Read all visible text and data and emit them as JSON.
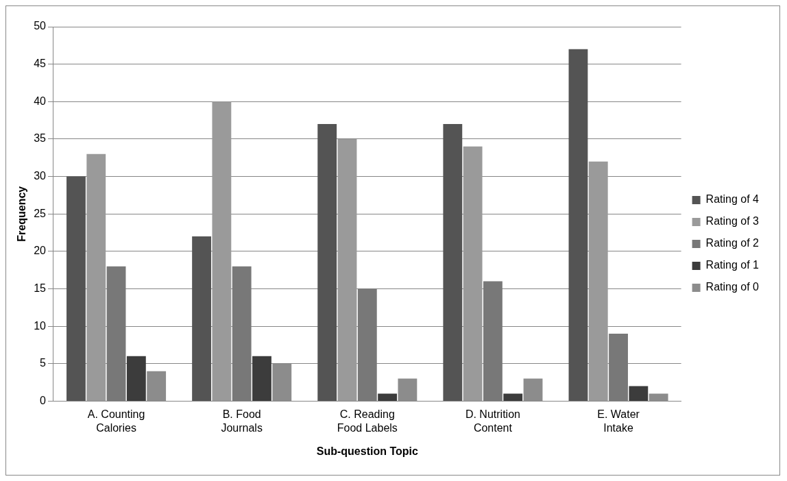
{
  "chart_data": {
    "type": "bar",
    "xlabel": "Sub-question Topic",
    "ylabel": "Frequency",
    "categories": [
      "A. Counting Calories",
      "B. Food Journals",
      "C. Reading Food Labels",
      "D. Nutrition Content",
      "E. Water Intake"
    ],
    "series": [
      {
        "name": "Rating of 4",
        "color": "#545454",
        "values": [
          30,
          22,
          37,
          37,
          47
        ]
      },
      {
        "name": "Rating of 3",
        "color": "#9a9a9a",
        "values": [
          33,
          40,
          35,
          34,
          32
        ]
      },
      {
        "name": "Rating of 2",
        "color": "#787878",
        "values": [
          18,
          18,
          15,
          16,
          9
        ]
      },
      {
        "name": "Rating of 1",
        "color": "#3c3c3c",
        "values": [
          6,
          6,
          1,
          1,
          2
        ]
      },
      {
        "name": "Rating of 0",
        "color": "#8c8c8c",
        "values": [
          4,
          5,
          3,
          3,
          1
        ]
      }
    ],
    "ylim": [
      0,
      50
    ],
    "yticks": [
      0,
      5,
      10,
      15,
      20,
      25,
      30,
      35,
      40,
      45,
      50
    ],
    "grid": "y",
    "legend": "right"
  }
}
